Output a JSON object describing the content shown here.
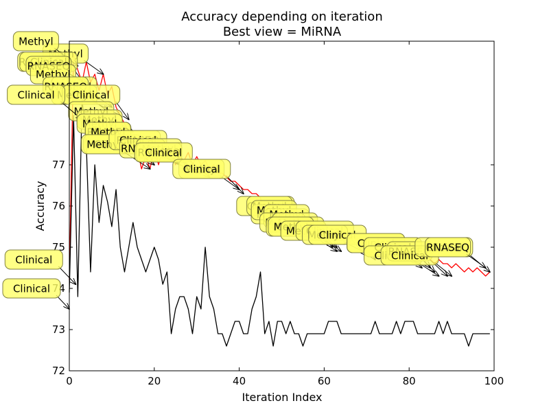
{
  "chart_data": {
    "type": "line",
    "title": "Accuracy depending on iteration",
    "subtitle": "Best view = MiRNA",
    "xlabel": "Iteration Index",
    "ylabel": "Accuracy",
    "xlim": [
      0,
      100
    ],
    "ylim": [
      72,
      80
    ],
    "x_ticks": [
      0,
      20,
      40,
      60,
      80,
      100
    ],
    "y_ticks": [
      72,
      73,
      74,
      75,
      76,
      77
    ],
    "grid": false,
    "series": [
      {
        "color": "#ff0000",
        "x": [
          0,
          1,
          2,
          3,
          4,
          5,
          6,
          7,
          8,
          9,
          10,
          11,
          12,
          13,
          14,
          15,
          16,
          17,
          18,
          19,
          20,
          21,
          22,
          23,
          24,
          25,
          26,
          27,
          28,
          29,
          30,
          31,
          32,
          33,
          34,
          35,
          36,
          37,
          38,
          39,
          40,
          41,
          42,
          43,
          44,
          45,
          46,
          47,
          48,
          49,
          50,
          51,
          52,
          53,
          54,
          55,
          56,
          57,
          58,
          59,
          60,
          61,
          62,
          63,
          64,
          65,
          66,
          67,
          68,
          69,
          70,
          71,
          72,
          73,
          74,
          75,
          76,
          77,
          78,
          79,
          80,
          81,
          82,
          83,
          84,
          85,
          86,
          87,
          88,
          89,
          90,
          91,
          92,
          93,
          94,
          95,
          96,
          97,
          98,
          99
        ],
        "values": [
          74.2,
          79.7,
          79.3,
          79.0,
          79.5,
          79.0,
          79.2,
          78.8,
          79.2,
          78.7,
          78.9,
          78.4,
          78.2,
          78.0,
          77.8,
          77.6,
          77.4,
          76.9,
          77.2,
          76.9,
          77.4,
          77.0,
          77.4,
          77.2,
          77.4,
          77.0,
          77.2,
          77.1,
          77.3,
          77.0,
          77.2,
          77.0,
          77.1,
          76.9,
          77.0,
          76.8,
          76.8,
          76.7,
          76.6,
          76.6,
          76.5,
          76.4,
          76.4,
          76.3,
          76.3,
          76.2,
          75.8,
          76.0,
          75.9,
          75.9,
          75.8,
          75.7,
          75.7,
          75.6,
          75.5,
          75.5,
          75.4,
          75.5,
          75.4,
          75.2,
          75.3,
          75.2,
          75.4,
          75.2,
          75.3,
          75.2,
          75.1,
          75.3,
          75.1,
          75.1,
          75.0,
          75.1,
          75.0,
          74.9,
          75.1,
          75.0,
          74.9,
          75.0,
          74.9,
          74.8,
          74.9,
          74.8,
          74.8,
          74.7,
          74.9,
          74.7,
          74.6,
          74.7,
          74.6,
          74.6,
          74.5,
          74.6,
          74.5,
          74.4,
          74.5,
          74.4,
          74.5,
          74.4,
          74.3,
          74.4
        ]
      },
      {
        "color": "#000000",
        "x": [
          0,
          1,
          2,
          3,
          4,
          5,
          6,
          7,
          8,
          9,
          10,
          11,
          12,
          13,
          14,
          15,
          16,
          17,
          18,
          19,
          20,
          21,
          22,
          23,
          24,
          25,
          26,
          27,
          28,
          29,
          30,
          31,
          32,
          33,
          34,
          35,
          36,
          37,
          38,
          39,
          40,
          41,
          42,
          43,
          44,
          45,
          46,
          47,
          48,
          49,
          50,
          51,
          52,
          53,
          54,
          55,
          56,
          57,
          58,
          59,
          60,
          61,
          62,
          63,
          64,
          65,
          66,
          67,
          68,
          69,
          70,
          71,
          72,
          73,
          74,
          75,
          76,
          77,
          78,
          79,
          80,
          81,
          82,
          83,
          84,
          85,
          86,
          87,
          88,
          89,
          90,
          91,
          92,
          93,
          94,
          95,
          96,
          97,
          98,
          99
        ],
        "values": [
          73.9,
          78.2,
          73.8,
          78.6,
          77.5,
          74.4,
          77.0,
          75.6,
          76.5,
          76.1,
          75.5,
          76.4,
          75.0,
          74.4,
          75.0,
          75.6,
          75.0,
          74.7,
          74.4,
          74.7,
          75.0,
          74.7,
          74.1,
          74.4,
          72.9,
          73.5,
          73.8,
          73.8,
          73.5,
          72.9,
          73.8,
          73.5,
          75.0,
          73.8,
          73.5,
          72.9,
          72.9,
          72.6,
          72.9,
          73.2,
          73.2,
          72.9,
          72.9,
          73.5,
          73.8,
          74.4,
          72.9,
          73.2,
          72.6,
          73.2,
          73.2,
          72.9,
          73.2,
          72.9,
          72.9,
          72.6,
          72.9,
          72.9,
          72.9,
          72.9,
          72.9,
          73.2,
          73.2,
          73.2,
          72.9,
          72.9,
          72.9,
          72.9,
          72.9,
          72.9,
          72.9,
          72.9,
          73.2,
          72.9,
          72.9,
          72.9,
          72.9,
          73.2,
          72.9,
          73.2,
          73.2,
          73.2,
          72.9,
          72.9,
          72.9,
          72.9,
          72.9,
          73.2,
          72.9,
          73.2,
          72.9,
          72.9,
          72.9,
          72.9,
          72.6,
          72.9,
          72.9,
          72.9,
          72.9,
          72.9
        ]
      }
    ],
    "annotations_style": {
      "fill": "#ffff66",
      "edge": "#7f7f3f",
      "arrow": "#000000"
    },
    "annotations": [
      {
        "text": "Methyl",
        "x": 8.0,
        "y": 79.2
      },
      {
        "text": "Methyl",
        "x": 2.0,
        "y": 79.4
      },
      {
        "text": "RNASEQ",
        "x": 4.0,
        "y": 79.0
      },
      {
        "text": "Clinical",
        "x": 4.0,
        "y": 78.9
      },
      {
        "text": "RNASEQ",
        "x": 5.0,
        "y": 78.9
      },
      {
        "text": "Methyl",
        "x": 7.0,
        "y": 78.6
      },
      {
        "text": "Methyl",
        "x": 10.0,
        "y": 78.4
      },
      {
        "text": "RNASEQ",
        "x": 9.0,
        "y": 78.3
      },
      {
        "text": "Methyl",
        "x": 12.0,
        "y": 78.2
      },
      {
        "text": "Clinical",
        "x": 14.0,
        "y": 78.1
      },
      {
        "text": "Methyl",
        "x": 15.0,
        "y": 77.8
      },
      {
        "text": "Clinical",
        "x": 3.0,
        "y": 78.1
      },
      {
        "text": "Methyl",
        "x": 16.0,
        "y": 77.6
      },
      {
        "text": "Methyl",
        "x": 17.0,
        "y": 77.4
      },
      {
        "text": "RNASEQ",
        "x": 20.0,
        "y": 77.3
      },
      {
        "text": "Methyl",
        "x": 18.0,
        "y": 77.2
      },
      {
        "text": "Clinical",
        "x": 20.0,
        "y": 77.0
      },
      {
        "text": "Methyl",
        "x": 19.0,
        "y": 76.9
      },
      {
        "text": "RNASEQ",
        "x": 25.0,
        "y": 77.1
      },
      {
        "text": "Clinical",
        "x": 26.0,
        "y": 77.0
      },
      {
        "text": "RNASEQ",
        "x": 28.0,
        "y": 76.9
      },
      {
        "text": "Methyl",
        "x": 30.0,
        "y": 76.8
      },
      {
        "text": "RNASEQ",
        "x": 31.0,
        "y": 76.8
      },
      {
        "text": "Clinical",
        "x": 33.0,
        "y": 76.7
      },
      {
        "text": "Methyl",
        "x": 40.0,
        "y": 76.4
      },
      {
        "text": "Clinical",
        "x": 41.0,
        "y": 76.3
      },
      {
        "text": "Clinical",
        "x": 57.0,
        "y": 75.5
      },
      {
        "text": "Methyl",
        "x": 56.0,
        "y": 75.4
      },
      {
        "text": "Methyl",
        "x": 58.0,
        "y": 75.3
      },
      {
        "text": "Methyl",
        "x": 59.0,
        "y": 75.3
      },
      {
        "text": "Methyl",
        "x": 60.0,
        "y": 75.2
      },
      {
        "text": "Methyl",
        "x": 61.0,
        "y": 75.2
      },
      {
        "text": "Methyl",
        "x": 61.0,
        "y": 75.1
      },
      {
        "text": "Methyl",
        "x": 62.0,
        "y": 75.0
      },
      {
        "text": "Clinical",
        "x": 63.0,
        "y": 75.0
      },
      {
        "text": "Methyl",
        "x": 63.0,
        "y": 74.9
      },
      {
        "text": "Methyl",
        "x": 64.0,
        "y": 74.9
      },
      {
        "text": "Clinical",
        "x": 70.0,
        "y": 74.8
      },
      {
        "text": "Methyl",
        "x": 71.0,
        "y": 74.8
      },
      {
        "text": "Clinical",
        "x": 72.0,
        "y": 74.7
      },
      {
        "text": "Clinical",
        "x": 82.0,
        "y": 74.6
      },
      {
        "text": "Clinical",
        "x": 83.0,
        "y": 74.5
      },
      {
        "text": "Clinical",
        "x": 85.0,
        "y": 74.5
      },
      {
        "text": "Clinical",
        "x": 86.0,
        "y": 74.4
      },
      {
        "text": "Clinical",
        "x": 87.0,
        "y": 74.3
      },
      {
        "text": "RNASEQ",
        "x": 89.0,
        "y": 74.3
      },
      {
        "text": "Clinical",
        "x": 90.0,
        "y": 74.3
      },
      {
        "text": "Clinical",
        "x": 99.0,
        "y": 74.4
      },
      {
        "text": "RNASEQ",
        "x": 98.0,
        "y": 74.5
      },
      {
        "text": "Clinical",
        "x": 1.5,
        "y": 74.1
      },
      {
        "text": "Clinical",
        "x": 0.0,
        "y": 73.5
      }
    ]
  }
}
